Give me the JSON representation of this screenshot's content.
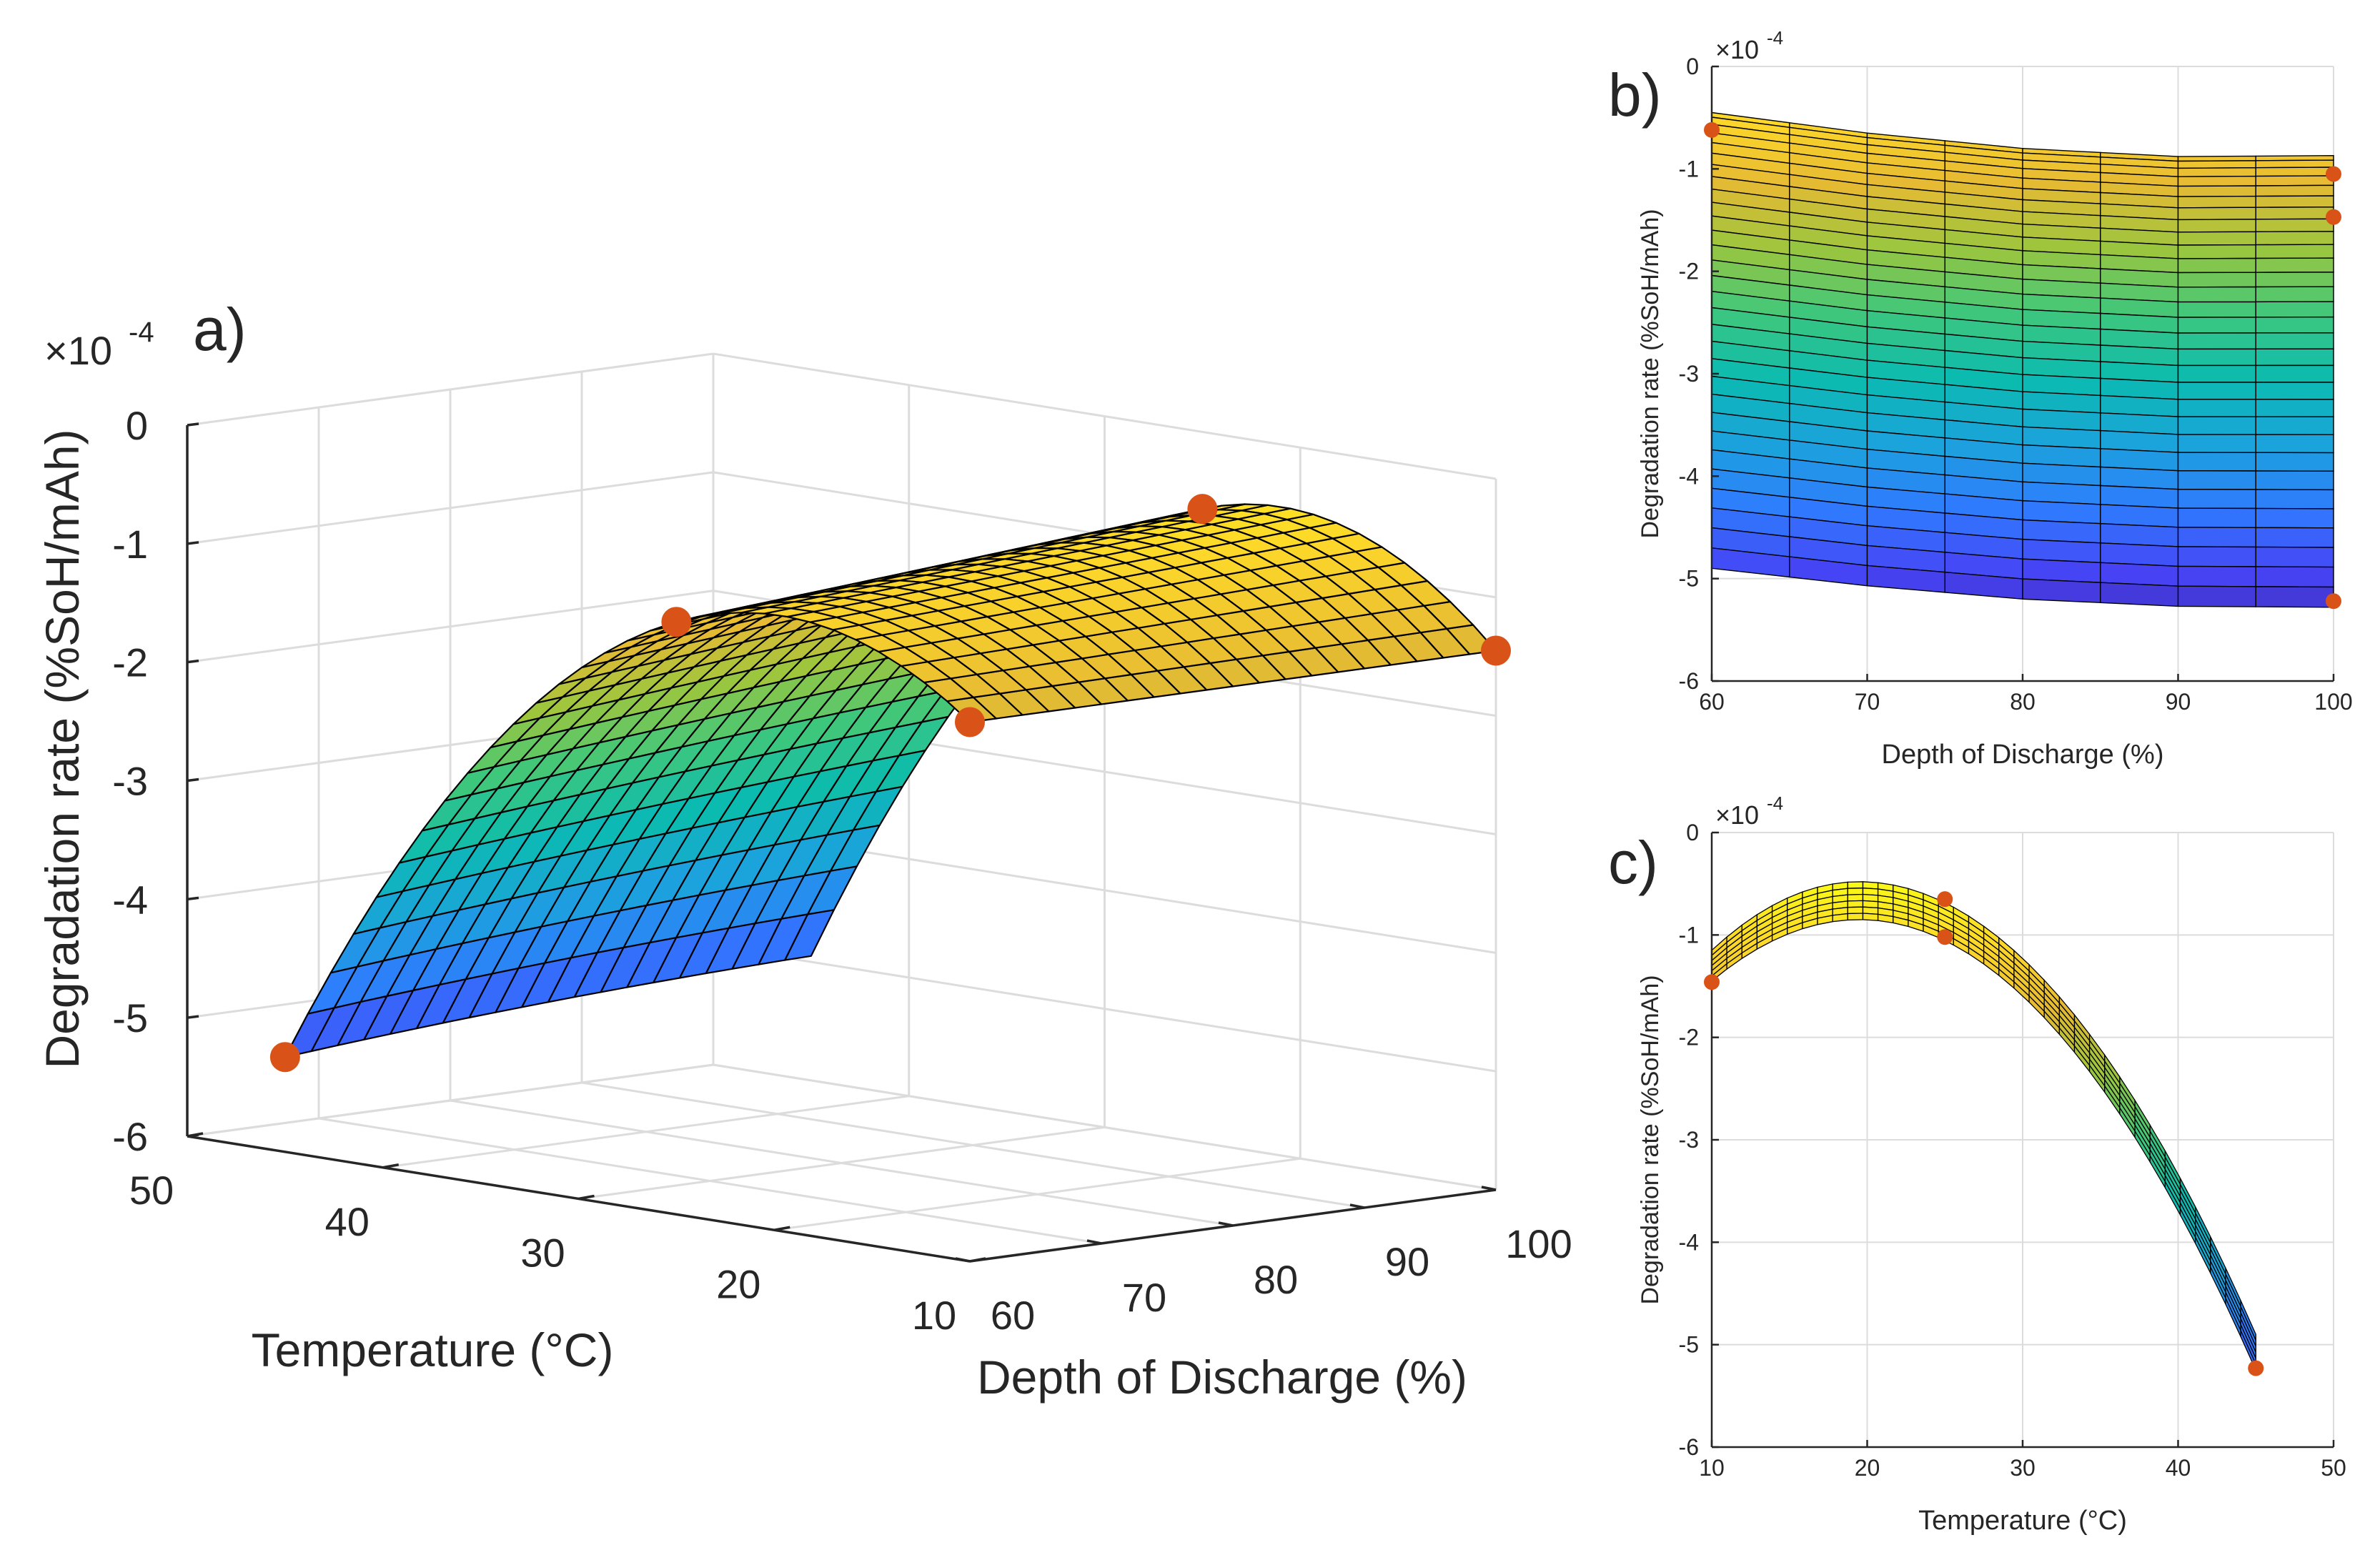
{
  "figure": {
    "panel_labels": {
      "a": "a)",
      "b": "b)",
      "c": "c)"
    }
  },
  "colors": {
    "marker": "#D95319",
    "grid": "#DCDCDC",
    "axis": "#262626",
    "mesh": "#000000",
    "colormap": [
      "#3E26A8",
      "#4743F5",
      "#2F7BFE",
      "#1BA3DC",
      "#0BBBB0",
      "#3EC77C",
      "#9BC63E",
      "#E6BA33",
      "#FDD829",
      "#F9FB15"
    ]
  },
  "chart_data": [
    {
      "id": "a",
      "type": "surface",
      "title": "",
      "panel_label": "a)",
      "xlabel": "Temperature (°C)",
      "ylabel": "Depth of Discharge (%)",
      "zlabel": "Degradation rate (%SoH/mAh)",
      "exponent_label": "×10",
      "exponent": "-4",
      "xlim": [
        10,
        50
      ],
      "ylim": [
        60,
        100
      ],
      "zlim": [
        -6,
        0
      ],
      "x_ticks": [
        "50",
        "40",
        "30",
        "20",
        "10"
      ],
      "y_ticks": [
        "60",
        "70",
        "80",
        "90",
        "100"
      ],
      "z_ticks": [
        "0",
        "-1",
        "-2",
        "-3",
        "-4",
        "-5",
        "-6"
      ],
      "surface_x_range": [
        10,
        45
      ],
      "surface_y_range": [
        60,
        100
      ],
      "data_points": [
        {
          "temperature": 45,
          "dod": 60,
          "rate": -5.2
        },
        {
          "temperature": 25,
          "dod": 60,
          "rate": -1.0
        },
        {
          "temperature": 25,
          "dod": 100,
          "rate": -0.65
        },
        {
          "temperature": 10,
          "dod": 60,
          "rate": -1.45
        },
        {
          "temperature": 10,
          "dod": 100,
          "rate": -1.45
        }
      ]
    },
    {
      "id": "b",
      "type": "surface-side-view",
      "panel_label": "b)",
      "xlabel": "Depth of Discharge (%)",
      "ylabel": "Degradation rate (%SoH/mAh)",
      "exponent_label": "×10",
      "exponent": "-4",
      "xlim": [
        60,
        100
      ],
      "ylim": [
        -6,
        0
      ],
      "x_ticks": [
        "60",
        "70",
        "80",
        "90",
        "100"
      ],
      "y_ticks": [
        "0",
        "-1",
        "-2",
        "-3",
        "-4",
        "-5",
        "-6"
      ],
      "top_edge": {
        "x": [
          60,
          70,
          80,
          90,
          100
        ],
        "y": [
          -0.45,
          -0.65,
          -0.8,
          -0.88,
          -0.87
        ]
      },
      "bottom_edge": {
        "x": [
          60,
          70,
          80,
          90,
          100
        ],
        "y": [
          -4.9,
          -5.07,
          -5.2,
          -5.27,
          -5.28
        ]
      },
      "data_points": [
        {
          "x": 60,
          "y": -0.62
        },
        {
          "x": 100,
          "y": -1.05
        },
        {
          "x": 100,
          "y": -1.47
        },
        {
          "x": 100,
          "y": -5.22
        }
      ]
    },
    {
      "id": "c",
      "type": "surface-side-view",
      "panel_label": "c)",
      "xlabel": "Temperature (°C)",
      "ylabel": "Degradation rate (%SoH/mAh)",
      "exponent_label": "×10",
      "exponent": "-4",
      "xlim": [
        10,
        50
      ],
      "ylim": [
        -6,
        0
      ],
      "x_ticks": [
        "10",
        "20",
        "30",
        "40",
        "50"
      ],
      "y_ticks": [
        "0",
        "-1",
        "-2",
        "-3",
        "-4",
        "-5",
        "-6"
      ],
      "band_x": [
        10,
        45
      ],
      "upper_curve": {
        "vertex_x": 19.5,
        "vertex_y": -0.48,
        "x10_y": -1.15
      },
      "lower_curve": {
        "vertex_x": 19.5,
        "vertex_y": -0.85,
        "x10_y": -1.45
      },
      "end_band": {
        "upper_y": -4.9,
        "lower_y": -5.25
      },
      "data_points": [
        {
          "x": 10,
          "y": -1.46
        },
        {
          "x": 25,
          "y": -0.65
        },
        {
          "x": 25,
          "y": -1.02
        },
        {
          "x": 45,
          "y": -5.23
        }
      ]
    }
  ]
}
